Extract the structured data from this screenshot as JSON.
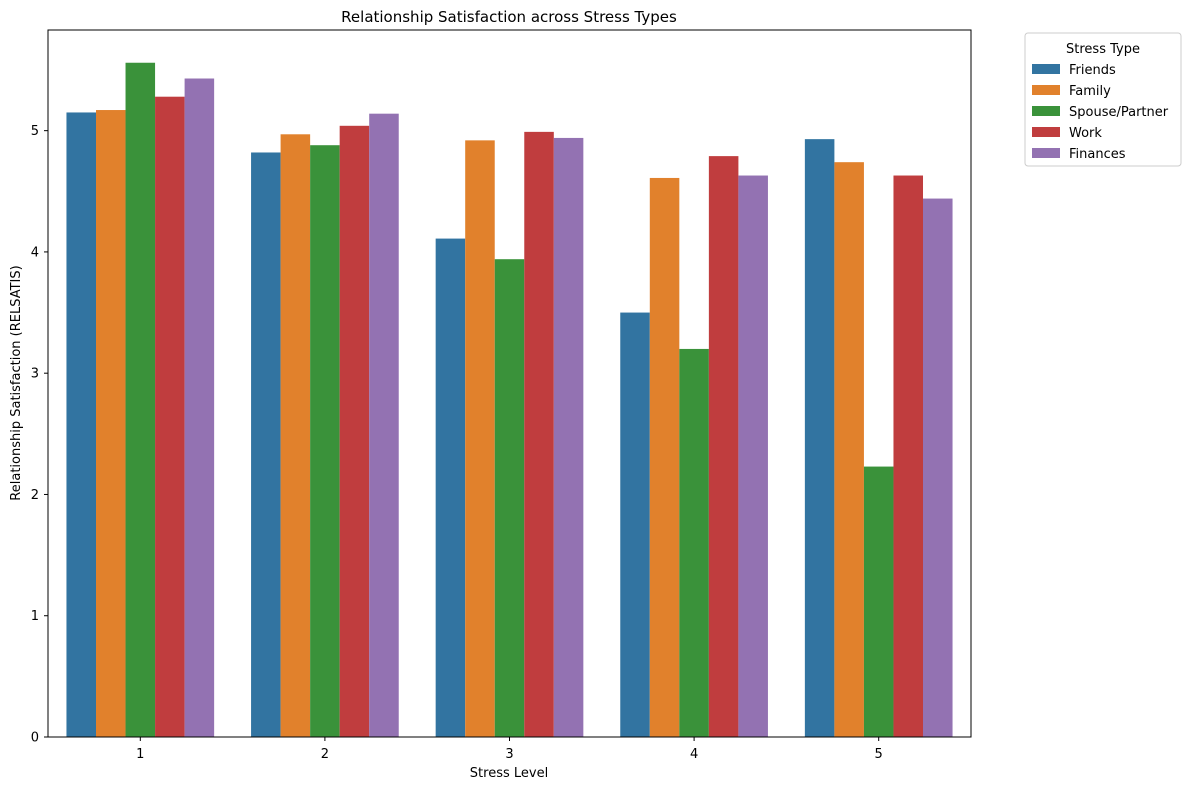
{
  "chart_data": {
    "type": "bar",
    "title": "Relationship Satisfaction across Stress Types",
    "xlabel": "Stress Level",
    "ylabel": "Relationship Satisfaction (RELSATIS)",
    "categories": [
      "1",
      "2",
      "3",
      "4",
      "5"
    ],
    "ylim": [
      0,
      5.83
    ],
    "yticks": [
      "0",
      "1",
      "2",
      "3",
      "4",
      "5"
    ],
    "grid": false,
    "legend": {
      "title": "Stress Type",
      "placement": "outside-top-right"
    },
    "series": [
      {
        "name": "Friends",
        "color": "#3274a1",
        "values": [
          5.15,
          4.82,
          4.11,
          3.5,
          4.93
        ]
      },
      {
        "name": "Family",
        "color": "#e1812c",
        "values": [
          5.17,
          4.97,
          4.92,
          4.61,
          4.74
        ]
      },
      {
        "name": "Spouse/Partner",
        "color": "#3a923a",
        "values": [
          5.56,
          4.88,
          3.94,
          3.2,
          2.23
        ]
      },
      {
        "name": "Work",
        "color": "#c03d3e",
        "values": [
          5.28,
          5.04,
          4.99,
          4.79,
          4.63
        ]
      },
      {
        "name": "Finances",
        "color": "#9372b2",
        "values": [
          5.43,
          5.14,
          4.94,
          4.63,
          4.44
        ]
      }
    ]
  }
}
